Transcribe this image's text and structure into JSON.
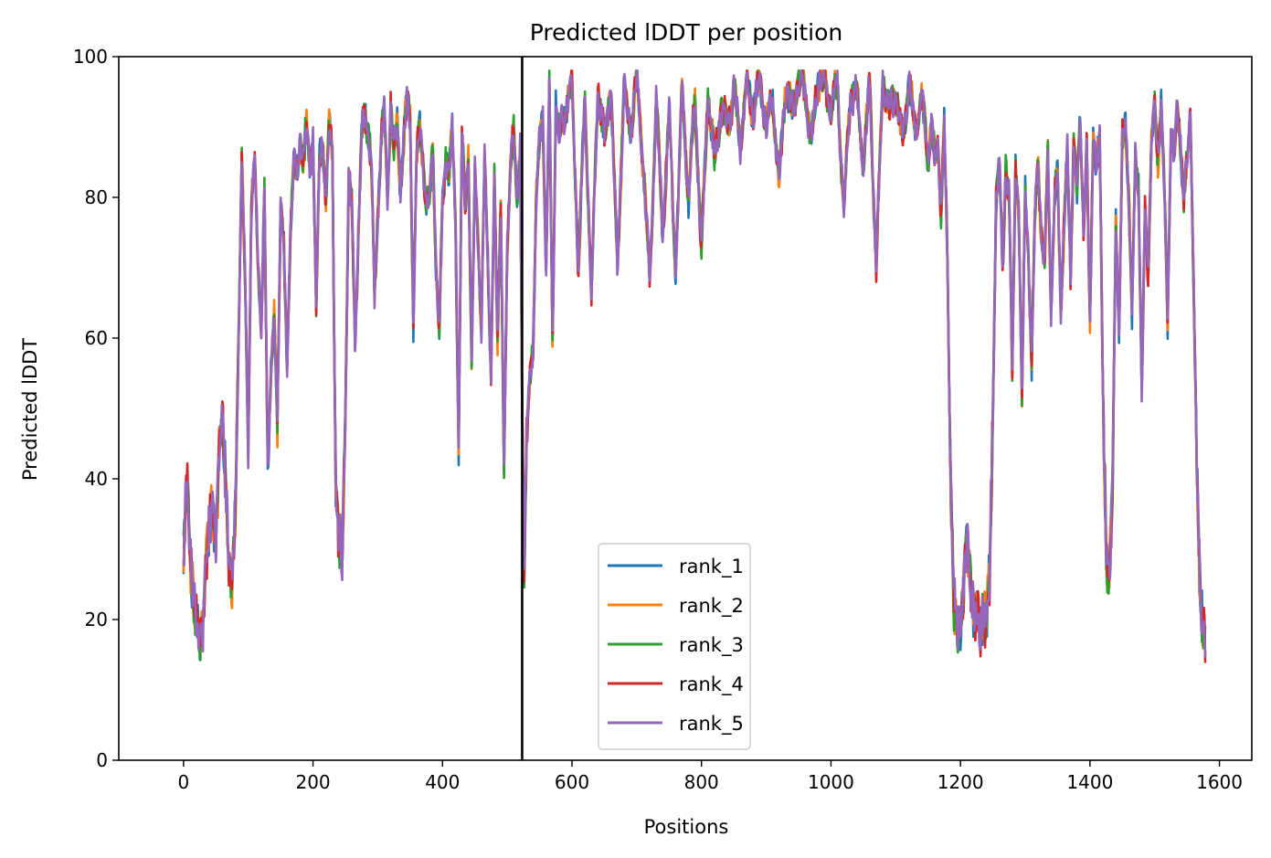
{
  "chart_data": {
    "type": "line",
    "title": "Predicted lDDT per position",
    "xlabel": "Positions",
    "ylabel": "Predicted lDDT",
    "xlim": [
      -100,
      1650
    ],
    "ylim": [
      0,
      100
    ],
    "xticks": [
      0,
      200,
      400,
      600,
      800,
      1000,
      1200,
      1400,
      1600
    ],
    "yticks": [
      0,
      20,
      40,
      60,
      80,
      100
    ],
    "grid": false,
    "legend_position": "lower-center",
    "vline_x": 523,
    "x_max": 1578,
    "series": [
      {
        "name": "rank_1",
        "color": "#1f77b4"
      },
      {
        "name": "rank_2",
        "color": "#ff7f0e"
      },
      {
        "name": "rank_3",
        "color": "#2ca02c"
      },
      {
        "name": "rank_4",
        "color": "#d62728"
      },
      {
        "name": "rank_5",
        "color": "#9467bd"
      }
    ],
    "profile_x": [
      0,
      5,
      10,
      15,
      20,
      25,
      30,
      35,
      40,
      45,
      50,
      55,
      60,
      65,
      70,
      75,
      80,
      85,
      90,
      95,
      100,
      105,
      110,
      115,
      120,
      125,
      130,
      135,
      140,
      145,
      150,
      155,
      160,
      165,
      170,
      175,
      180,
      185,
      190,
      195,
      200,
      205,
      210,
      215,
      220,
      225,
      230,
      235,
      240,
      245,
      250,
      255,
      260,
      265,
      270,
      275,
      280,
      285,
      290,
      295,
      300,
      305,
      310,
      315,
      320,
      325,
      330,
      335,
      340,
      345,
      350,
      355,
      360,
      365,
      370,
      375,
      380,
      385,
      390,
      395,
      400,
      405,
      410,
      415,
      420,
      425,
      430,
      435,
      440,
      445,
      450,
      455,
      460,
      465,
      470,
      475,
      480,
      485,
      490,
      495,
      500,
      505,
      510,
      515,
      520,
      523,
      526,
      530,
      535,
      540,
      545,
      550,
      555,
      560,
      565,
      570,
      575,
      580,
      590,
      600,
      610,
      620,
      630,
      640,
      650,
      660,
      670,
      680,
      690,
      700,
      710,
      720,
      730,
      740,
      750,
      760,
      770,
      780,
      790,
      800,
      810,
      820,
      830,
      840,
      850,
      860,
      870,
      880,
      890,
      900,
      910,
      920,
      930,
      940,
      950,
      960,
      970,
      980,
      990,
      1000,
      1010,
      1020,
      1030,
      1040,
      1050,
      1060,
      1070,
      1080,
      1090,
      1100,
      1110,
      1120,
      1130,
      1140,
      1150,
      1155,
      1160,
      1165,
      1170,
      1175,
      1180,
      1185,
      1190,
      1195,
      1200,
      1205,
      1210,
      1215,
      1220,
      1225,
      1230,
      1235,
      1240,
      1245,
      1250,
      1255,
      1260,
      1265,
      1270,
      1275,
      1280,
      1285,
      1290,
      1295,
      1300,
      1305,
      1310,
      1315,
      1320,
      1325,
      1330,
      1335,
      1340,
      1345,
      1350,
      1355,
      1360,
      1365,
      1370,
      1375,
      1380,
      1385,
      1390,
      1395,
      1400,
      1405,
      1410,
      1415,
      1420,
      1425,
      1430,
      1435,
      1440,
      1445,
      1450,
      1455,
      1460,
      1465,
      1470,
      1475,
      1480,
      1485,
      1490,
      1495,
      1500,
      1505,
      1510,
      1515,
      1520,
      1525,
      1530,
      1535,
      1540,
      1545,
      1550,
      1555,
      1560,
      1565,
      1570,
      1575,
      1578
    ],
    "profile_y": [
      28,
      40,
      30,
      24,
      19,
      17,
      20,
      28,
      32,
      38,
      30,
      43,
      49,
      41,
      27,
      24,
      36,
      60,
      84,
      70,
      45,
      78,
      86,
      72,
      60,
      80,
      44,
      55,
      62,
      48,
      80,
      72,
      55,
      76,
      85,
      82,
      88,
      86,
      90,
      84,
      89,
      63,
      85,
      88,
      80,
      90,
      86,
      40,
      30,
      29,
      50,
      82,
      78,
      60,
      75,
      88,
      92,
      90,
      85,
      65,
      78,
      88,
      92,
      80,
      94,
      86,
      90,
      82,
      88,
      93,
      92,
      62,
      85,
      90,
      86,
      78,
      80,
      88,
      70,
      60,
      80,
      86,
      82,
      90,
      78,
      44,
      88,
      80,
      86,
      55,
      84,
      75,
      60,
      85,
      72,
      54,
      82,
      60,
      80,
      40,
      72,
      86,
      90,
      78,
      88,
      52,
      28,
      45,
      55,
      60,
      80,
      88,
      92,
      70,
      95,
      60,
      94,
      88,
      93,
      96,
      70,
      94,
      66,
      96,
      88,
      96,
      70,
      95,
      90,
      97,
      85,
      68,
      94,
      75,
      92,
      70,
      95,
      80,
      94,
      72,
      95,
      85,
      93,
      90,
      95,
      88,
      96,
      92,
      97,
      90,
      94,
      82,
      96,
      92,
      97,
      95,
      88,
      97,
      96,
      93,
      96,
      78,
      95,
      94,
      85,
      96,
      70,
      97,
      92,
      95,
      88,
      96,
      90,
      94,
      86,
      90,
      85,
      88,
      78,
      90,
      70,
      40,
      22,
      18,
      20,
      25,
      30,
      26,
      22,
      20,
      18,
      22,
      20,
      25,
      50,
      80,
      84,
      70,
      85,
      80,
      55,
      86,
      78,
      50,
      82,
      72,
      55,
      78,
      86,
      74,
      70,
      88,
      64,
      78,
      84,
      65,
      75,
      86,
      70,
      88,
      80,
      92,
      76,
      86,
      62,
      90,
      84,
      88,
      54,
      30,
      24,
      40,
      78,
      60,
      88,
      92,
      80,
      62,
      86,
      82,
      52,
      78,
      70,
      88,
      92,
      86,
      94,
      80,
      62,
      90,
      86,
      92,
      88,
      80,
      84,
      92,
      70,
      40,
      24,
      20,
      17
    ]
  }
}
